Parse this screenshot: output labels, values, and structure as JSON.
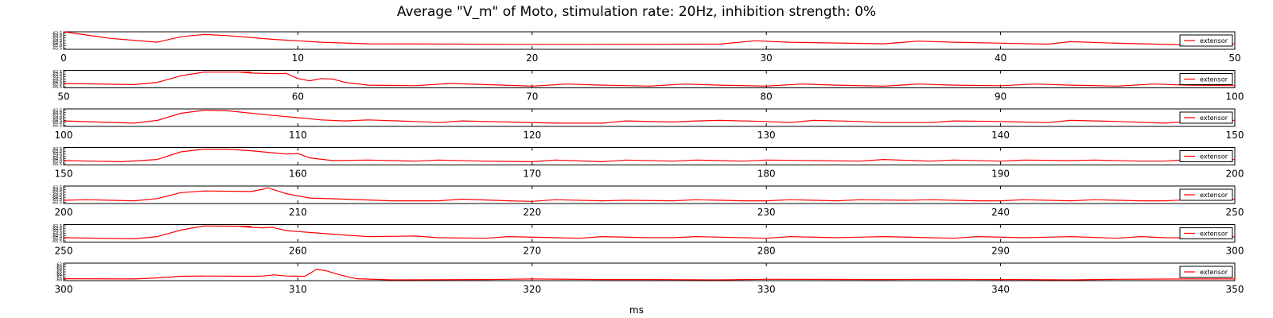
{
  "chart_data": {
    "type": "line",
    "title": "Average \"V_m\" of Moto, stimulation rate: 20Hz, inhibition strength: 0%",
    "xlabel": "ms",
    "ylabel": "",
    "line_color": "#ff0000",
    "legend_position": "right",
    "series_name": "extensor",
    "panels": [
      {
        "xlim": [
          0,
          50
        ],
        "x_ticks": [
          0,
          10,
          20,
          30,
          40,
          50
        ],
        "y_tick_labels": [
          "-62.5",
          "-63.0",
          "-63.5",
          "-64.0",
          "-64.5",
          "-65.0",
          "-65.5"
        ],
        "ylim": [
          -65.6,
          -62.4
        ],
        "points": [
          [
            0,
            -62.4
          ],
          [
            2,
            -63.6
          ],
          [
            4,
            -64.3
          ],
          [
            5,
            -63.3
          ],
          [
            6,
            -62.9
          ],
          [
            7,
            -63.1
          ],
          [
            9,
            -63.8
          ],
          [
            11,
            -64.3
          ],
          [
            13,
            -64.6
          ],
          [
            20,
            -64.7
          ],
          [
            28,
            -64.65
          ],
          [
            29.5,
            -64.05
          ],
          [
            31,
            -64.3
          ],
          [
            35,
            -64.6
          ],
          [
            36.5,
            -64.1
          ],
          [
            38,
            -64.3
          ],
          [
            42,
            -64.65
          ],
          [
            43,
            -64.2
          ],
          [
            45,
            -64.5
          ],
          [
            48,
            -64.8
          ],
          [
            50,
            -64.6
          ]
        ]
      },
      {
        "xlim": [
          50,
          100
        ],
        "x_ticks": [
          50,
          60,
          70,
          80,
          90,
          100
        ],
        "y_tick_labels": [
          "-62.5",
          "-63.0",
          "-63.5",
          "-64.0",
          "-64.5",
          "-65.0",
          "-65.5"
        ],
        "ylim": [
          -65.6,
          -62.4
        ],
        "points": [
          [
            50,
            -64.8
          ],
          [
            53,
            -65.0
          ],
          [
            54,
            -64.6
          ],
          [
            55,
            -63.4
          ],
          [
            56,
            -62.7
          ],
          [
            58,
            -62.7
          ],
          [
            57.5,
            -62.7
          ],
          [
            58,
            -62.9
          ],
          [
            59,
            -63.0
          ],
          [
            59.5,
            -62.95
          ],
          [
            60,
            -63.9
          ],
          [
            60.5,
            -64.3
          ],
          [
            61,
            -63.9
          ],
          [
            61.5,
            -64.0
          ],
          [
            62,
            -64.6
          ],
          [
            63,
            -65.1
          ],
          [
            65,
            -65.2
          ],
          [
            66.5,
            -64.8
          ],
          [
            68,
            -65.0
          ],
          [
            70,
            -65.3
          ],
          [
            71.5,
            -64.9
          ],
          [
            73,
            -65.1
          ],
          [
            75,
            -65.3
          ],
          [
            76.5,
            -64.9
          ],
          [
            78,
            -65.1
          ],
          [
            80,
            -65.3
          ],
          [
            81.5,
            -64.9
          ],
          [
            83,
            -65.1
          ],
          [
            85,
            -65.3
          ],
          [
            86.5,
            -64.9
          ],
          [
            88,
            -65.1
          ],
          [
            90,
            -65.2
          ],
          [
            91.5,
            -64.9
          ],
          [
            93,
            -65.1
          ],
          [
            95,
            -65.3
          ],
          [
            96.5,
            -64.9
          ],
          [
            98,
            -65.1
          ],
          [
            100,
            -65.2
          ]
        ]
      },
      {
        "xlim": [
          100,
          150
        ],
        "x_ticks": [
          100,
          110,
          120,
          130,
          140,
          150
        ],
        "y_tick_labels": [
          "-62.5",
          "-63.0",
          "-63.5",
          "-64.0",
          "-64.5",
          "-65.0",
          "-65.5"
        ],
        "ylim": [
          -65.6,
          -62.4
        ],
        "points": [
          [
            100,
            -64.6
          ],
          [
            103,
            -65.0
          ],
          [
            104,
            -64.5
          ],
          [
            105,
            -63.2
          ],
          [
            106,
            -62.65
          ],
          [
            107,
            -62.75
          ],
          [
            109,
            -63.6
          ],
          [
            111,
            -64.4
          ],
          [
            112,
            -64.6
          ],
          [
            113,
            -64.4
          ],
          [
            115,
            -64.7
          ],
          [
            116,
            -64.9
          ],
          [
            117,
            -64.6
          ],
          [
            119,
            -64.8
          ],
          [
            121,
            -65.0
          ],
          [
            123,
            -65.0
          ],
          [
            124,
            -64.6
          ],
          [
            126,
            -64.8
          ],
          [
            127,
            -64.6
          ],
          [
            128,
            -64.5
          ],
          [
            130,
            -64.7
          ],
          [
            131,
            -64.9
          ],
          [
            132,
            -64.5
          ],
          [
            134,
            -64.7
          ],
          [
            135,
            -64.9
          ],
          [
            137,
            -64.9
          ],
          [
            138,
            -64.6
          ],
          [
            140,
            -64.7
          ],
          [
            142,
            -64.9
          ],
          [
            143,
            -64.5
          ],
          [
            145,
            -64.7
          ],
          [
            147,
            -65.0
          ],
          [
            148,
            -64.7
          ],
          [
            150,
            -64.5
          ]
        ]
      },
      {
        "xlim": [
          150,
          200
        ],
        "x_ticks": [
          150,
          160,
          170,
          180,
          190,
          200
        ],
        "y_tick_labels": [
          "-62.5",
          "-63.0",
          "-63.5",
          "-64.0",
          "-64.5",
          "-65.0",
          "-65.5"
        ],
        "ylim": [
          -65.6,
          -62.4
        ],
        "points": [
          [
            150,
            -64.8
          ],
          [
            152.5,
            -65.0
          ],
          [
            154,
            -64.6
          ],
          [
            155,
            -63.2
          ],
          [
            156,
            -62.7
          ],
          [
            157,
            -62.7
          ],
          [
            158,
            -63.0
          ],
          [
            159,
            -63.4
          ],
          [
            159.5,
            -63.6
          ],
          [
            160,
            -63.5
          ],
          [
            160.5,
            -64.3
          ],
          [
            161.5,
            -64.8
          ],
          [
            163,
            -64.7
          ],
          [
            165,
            -64.9
          ],
          [
            166,
            -64.7
          ],
          [
            168,
            -64.9
          ],
          [
            170,
            -65.0
          ],
          [
            171,
            -64.7
          ],
          [
            173,
            -65.0
          ],
          [
            174,
            -64.7
          ],
          [
            176,
            -64.9
          ],
          [
            177,
            -64.7
          ],
          [
            179,
            -64.9
          ],
          [
            180,
            -64.7
          ],
          [
            182,
            -64.8
          ],
          [
            184,
            -64.9
          ],
          [
            185,
            -64.6
          ],
          [
            187,
            -64.9
          ],
          [
            188,
            -64.7
          ],
          [
            190,
            -64.9
          ],
          [
            191,
            -64.7
          ],
          [
            193,
            -64.8
          ],
          [
            194,
            -64.7
          ],
          [
            196,
            -64.9
          ],
          [
            197,
            -64.9
          ],
          [
            198,
            -64.6
          ],
          [
            200,
            -64.6
          ]
        ]
      },
      {
        "xlim": [
          200,
          250
        ],
        "x_ticks": [
          200,
          210,
          220,
          230,
          240,
          250
        ],
        "y_tick_labels": [
          "-62.5",
          "-63.0",
          "-63.5",
          "-64.0",
          "-64.5",
          "-65.0",
          "-65.5"
        ],
        "ylim": [
          -65.6,
          -62.4
        ],
        "points": [
          [
            200,
            -65.0
          ],
          [
            201,
            -64.9
          ],
          [
            203,
            -65.1
          ],
          [
            204,
            -64.7
          ],
          [
            205,
            -63.6
          ],
          [
            206,
            -63.3
          ],
          [
            208,
            -63.4
          ],
          [
            208.5,
            -63.0
          ],
          [
            208.7,
            -62.7
          ],
          [
            209.5,
            -63.8
          ],
          [
            210.5,
            -64.6
          ],
          [
            212,
            -64.8
          ],
          [
            214,
            -65.1
          ],
          [
            216,
            -65.1
          ],
          [
            217,
            -64.8
          ],
          [
            219,
            -65.1
          ],
          [
            220,
            -65.2
          ],
          [
            221,
            -64.9
          ],
          [
            223,
            -65.1
          ],
          [
            224,
            -65.0
          ],
          [
            226,
            -65.1
          ],
          [
            227,
            -64.9
          ],
          [
            229,
            -65.1
          ],
          [
            230,
            -65.1
          ],
          [
            231,
            -64.9
          ],
          [
            233,
            -65.1
          ],
          [
            234,
            -64.9
          ],
          [
            236,
            -65.0
          ],
          [
            237,
            -64.9
          ],
          [
            239,
            -65.1
          ],
          [
            240,
            -65.1
          ],
          [
            241,
            -64.9
          ],
          [
            243,
            -65.1
          ],
          [
            244,
            -64.9
          ],
          [
            246,
            -65.1
          ],
          [
            247,
            -65.1
          ],
          [
            248,
            -64.9
          ],
          [
            250,
            -64.8
          ]
        ]
      },
      {
        "xlim": [
          250,
          300
        ],
        "x_ticks": [
          250,
          260,
          270,
          280,
          290,
          300
        ],
        "y_tick_labels": [
          "-62.5",
          "-63.0",
          "-63.5",
          "-64.0",
          "-64.5",
          "-65.0",
          "-65.5"
        ],
        "ylim": [
          -65.6,
          -62.4
        ],
        "points": [
          [
            250,
            -64.8
          ],
          [
            253,
            -65.0
          ],
          [
            254,
            -64.6
          ],
          [
            255,
            -63.4
          ],
          [
            256,
            -62.65
          ],
          [
            258,
            -62.7
          ],
          [
            257.5,
            -62.7
          ],
          [
            258,
            -62.9
          ],
          [
            258.5,
            -63.0
          ],
          [
            258.9,
            -62.9
          ],
          [
            259.5,
            -63.5
          ],
          [
            261,
            -64.0
          ],
          [
            262,
            -64.3
          ],
          [
            263,
            -64.6
          ],
          [
            265,
            -64.5
          ],
          [
            266,
            -64.8
          ],
          [
            268,
            -64.9
          ],
          [
            269,
            -64.6
          ],
          [
            271,
            -64.8
          ],
          [
            272,
            -64.9
          ],
          [
            273,
            -64.6
          ],
          [
            275,
            -64.8
          ],
          [
            276,
            -64.8
          ],
          [
            277,
            -64.6
          ],
          [
            279,
            -64.8
          ],
          [
            280,
            -64.9
          ],
          [
            281,
            -64.6
          ],
          [
            283,
            -64.8
          ],
          [
            284,
            -64.7
          ],
          [
            285,
            -64.6
          ],
          [
            287,
            -64.8
          ],
          [
            288,
            -64.9
          ],
          [
            289,
            -64.6
          ],
          [
            291,
            -64.8
          ],
          [
            292,
            -64.7
          ],
          [
            293,
            -64.6
          ],
          [
            295,
            -64.9
          ],
          [
            296,
            -64.6
          ],
          [
            297,
            -64.8
          ],
          [
            299,
            -64.9
          ],
          [
            300,
            -64.6
          ]
        ]
      },
      {
        "xlim": [
          300,
          350
        ],
        "x_ticks": [
          300,
          310,
          320,
          330,
          340,
          350
        ],
        "y_tick_labels": [
          "-62",
          "-63",
          "-64",
          "-65",
          "-66",
          "-67",
          "-68"
        ],
        "ylim": [
          -68.2,
          -61.8
        ],
        "points": [
          [
            300,
            -67.5
          ],
          [
            303,
            -67.6
          ],
          [
            304,
            -67.2
          ],
          [
            305,
            -66.6
          ],
          [
            306,
            -66.5
          ],
          [
            308,
            -66.6
          ],
          [
            308.5,
            -66.5
          ],
          [
            309,
            -66.1
          ],
          [
            309.5,
            -66.5
          ],
          [
            310.3,
            -66.6
          ],
          [
            310.6,
            -65.1
          ],
          [
            310.8,
            -64.0
          ],
          [
            311.2,
            -64.6
          ],
          [
            311.8,
            -66.1
          ],
          [
            312.5,
            -67.5
          ],
          [
            314,
            -67.9
          ],
          [
            318,
            -67.8
          ],
          [
            320,
            -67.6
          ],
          [
            323,
            -67.8
          ],
          [
            325,
            -67.8
          ],
          [
            328,
            -67.9
          ],
          [
            330,
            -67.7
          ],
          [
            335,
            -67.8
          ],
          [
            337,
            -67.7
          ],
          [
            340,
            -67.8
          ],
          [
            343,
            -67.9
          ],
          [
            345,
            -67.7
          ],
          [
            348,
            -67.6
          ],
          [
            350,
            -67.6
          ]
        ]
      }
    ]
  }
}
